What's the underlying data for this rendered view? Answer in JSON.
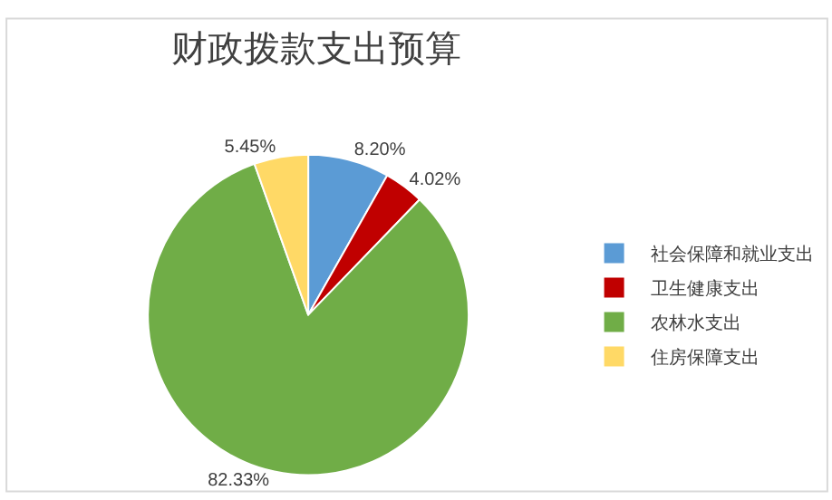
{
  "chart_data": {
    "type": "pie",
    "title": "财政拨款支出预算",
    "categories": [
      "社会保障和就业支出",
      "卫生健康支出",
      "农林水支出",
      "住房保障支出"
    ],
    "values": [
      8.2,
      4.02,
      82.33,
      5.45
    ],
    "colors": [
      "#5b9bd5",
      "#c00000",
      "#70ad47",
      "#ffd966"
    ],
    "value_labels": [
      "8.20%",
      "4.02%",
      "82.33%",
      "5.45%"
    ],
    "legend": "right"
  }
}
